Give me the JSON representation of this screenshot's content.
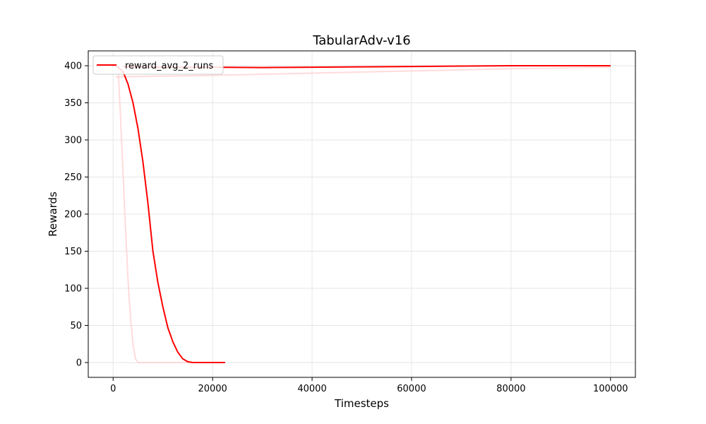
{
  "chart_data": {
    "type": "line",
    "title": "TabularAdv-v16",
    "xlabel": "Timesteps",
    "ylabel": "Rewards",
    "xlim": [
      -5000,
      105000
    ],
    "ylim": [
      -20,
      420
    ],
    "xticks": [
      0,
      20000,
      40000,
      60000,
      80000,
      100000
    ],
    "yticks": [
      0,
      50,
      100,
      150,
      200,
      250,
      300,
      350,
      400
    ],
    "grid": true,
    "legend_position": "top-left",
    "series": [
      {
        "name": "reward_avg_2_runs",
        "color": "#ff0000",
        "opacity": 1,
        "x": [
          500,
          1000,
          2000,
          3000,
          4000,
          5000,
          6000,
          7000,
          8000,
          9000,
          10000,
          11000,
          12000,
          13000,
          14000,
          15000,
          16000,
          16500,
          17000,
          18000,
          20000,
          22500
        ],
        "y": [
          400,
          398,
          392,
          375,
          350,
          315,
          270,
          215,
          150,
          108,
          75,
          47,
          28,
          14,
          5,
          1,
          0,
          0,
          0,
          0,
          0,
          0
        ]
      },
      {
        "name": "",
        "color": "#ff0000",
        "opacity": 1,
        "x": [
          2000,
          10000,
          20000,
          30000,
          40000,
          50000,
          60000,
          70000,
          80000,
          90000,
          100000
        ],
        "y": [
          399,
          398,
          398,
          397.5,
          398,
          398.5,
          399,
          399.5,
          400,
          400,
          400
        ]
      },
      {
        "name": "",
        "color": "#ffcccc",
        "opacity": 0.7,
        "x": [
          500,
          1000,
          1500,
          2000,
          2500,
          3000,
          3500,
          4000,
          4500,
          5000,
          10000,
          20000,
          22500
        ],
        "y": [
          400,
          395,
          330,
          255,
          180,
          110,
          60,
          25,
          5,
          0,
          0,
          0,
          0
        ]
      },
      {
        "name": "",
        "color": "#ffcccc",
        "opacity": 0.7,
        "x": [
          500,
          1000,
          20000,
          40000,
          60000,
          80000,
          100000
        ],
        "y": [
          385,
          385,
          387,
          390,
          393,
          396,
          398
        ]
      }
    ]
  }
}
